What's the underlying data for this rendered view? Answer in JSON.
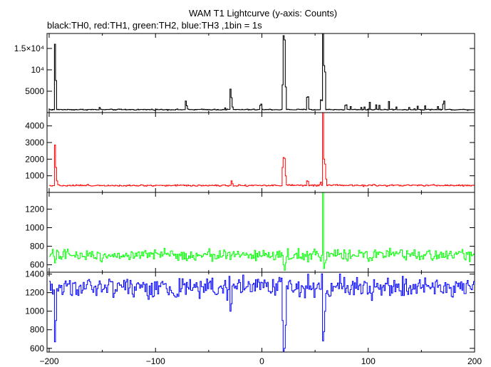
{
  "chart_data": {
    "type": "line",
    "title": "WAM T1 Lightcurve (y-axis: Counts)",
    "subtitle": "black:TH0, red:TH1, green:TH2, blue:TH3 ,1bin = 1s",
    "xlabel": "",
    "ylabel": "",
    "xlim": [
      -202,
      200
    ],
    "x_ticks": [
      -200,
      -100,
      0,
      100,
      200
    ],
    "x_tick_labels": [
      "−200",
      "−100",
      "0",
      "100",
      "200"
    ],
    "grid": false,
    "panels": [
      {
        "series_label": "TH0",
        "color": "#000000",
        "ylim": [
          0,
          18500
        ],
        "y_ticks": [
          5000,
          10000,
          15000
        ],
        "y_tick_labels": [
          "5000",
          "10⁴",
          "1.5×10⁴"
        ],
        "baseline": 700,
        "noise": 60,
        "features": [
          {
            "x": -195,
            "value": 16000
          },
          {
            "x": -194,
            "value": 7500
          },
          {
            "x": -153,
            "value": 1200
          },
          {
            "x": -72,
            "value": 2700
          },
          {
            "x": -71,
            "value": 1600
          },
          {
            "x": -35,
            "value": 1100
          },
          {
            "x": -30,
            "value": 5500
          },
          {
            "x": -29,
            "value": 3500
          },
          {
            "x": -28,
            "value": 1300
          },
          {
            "x": -2,
            "value": 1700
          },
          {
            "x": -1,
            "value": 2000
          },
          {
            "x": 19,
            "value": 6500
          },
          {
            "x": 20,
            "value": 18000
          },
          {
            "x": 21,
            "value": 17000
          },
          {
            "x": 22,
            "value": 6000
          },
          {
            "x": 42,
            "value": 3600
          },
          {
            "x": 43,
            "value": 3700
          },
          {
            "x": 55,
            "value": 3000
          },
          {
            "x": 56,
            "value": 2800
          },
          {
            "x": 57,
            "value": 18500
          },
          {
            "x": 58,
            "value": 11000
          },
          {
            "x": 59,
            "value": 9500
          },
          {
            "x": 78,
            "value": 1700
          },
          {
            "x": 79,
            "value": 1800
          },
          {
            "x": 83,
            "value": 1400
          },
          {
            "x": 93,
            "value": 1200
          },
          {
            "x": 96,
            "value": 1300
          },
          {
            "x": 101,
            "value": 2400
          },
          {
            "x": 107,
            "value": 1800
          },
          {
            "x": 110,
            "value": 1700
          },
          {
            "x": 119,
            "value": 2600
          },
          {
            "x": 126,
            "value": 1300
          },
          {
            "x": 138,
            "value": 1200
          },
          {
            "x": 146,
            "value": 1500
          },
          {
            "x": 153,
            "value": 1600
          },
          {
            "x": 165,
            "value": 1400
          },
          {
            "x": 170,
            "value": 2000
          },
          {
            "x": 171,
            "value": 2700
          }
        ]
      },
      {
        "series_label": "TH1",
        "color": "#ff0000",
        "ylim": [
          0,
          4800
        ],
        "y_ticks": [
          1000,
          2000,
          3000,
          4000
        ],
        "y_tick_labels": [
          "1000",
          "2000",
          "3000",
          "4000"
        ],
        "baseline": 420,
        "noise": 25,
        "features": [
          {
            "x": -195,
            "value": 2850
          },
          {
            "x": -194,
            "value": 1500
          },
          {
            "x": -193,
            "value": 700
          },
          {
            "x": -29,
            "value": 700
          },
          {
            "x": -28,
            "value": 520
          },
          {
            "x": 19,
            "value": 1500
          },
          {
            "x": 20,
            "value": 2100
          },
          {
            "x": 21,
            "value": 2050
          },
          {
            "x": 22,
            "value": 1000
          },
          {
            "x": 42,
            "value": 700
          },
          {
            "x": 43,
            "value": 650
          },
          {
            "x": 55,
            "value": 620
          },
          {
            "x": 57,
            "value": 4800
          },
          {
            "x": 58,
            "value": 2000
          },
          {
            "x": 59,
            "value": 1700
          },
          {
            "x": 60,
            "value": 800
          }
        ]
      },
      {
        "series_label": "TH2",
        "color": "#00ff00",
        "ylim": [
          520,
          1380
        ],
        "y_ticks": [
          600,
          800,
          1000,
          1200
        ],
        "y_tick_labels": [
          "600",
          "800",
          "1000",
          "1200"
        ],
        "baseline": 705,
        "noise": 30,
        "features": [
          {
            "x": -195,
            "value": 620
          },
          {
            "x": -194,
            "value": 660
          },
          {
            "x": 20,
            "value": 600
          },
          {
            "x": 21,
            "value": 540
          },
          {
            "x": 22,
            "value": 620
          },
          {
            "x": 55,
            "value": 640
          },
          {
            "x": 57,
            "value": 1380
          },
          {
            "x": 58,
            "value": 560
          },
          {
            "x": 59,
            "value": 620
          },
          {
            "x": 60,
            "value": 650
          }
        ]
      },
      {
        "series_label": "TH3",
        "color": "#0000ff",
        "ylim": [
          560,
          1420
        ],
        "y_ticks": [
          600,
          800,
          1000,
          1200,
          1400
        ],
        "y_tick_labels": [
          "600",
          "800",
          "1000",
          "1200",
          "1400"
        ],
        "baseline": 1260,
        "noise": 55,
        "features": [
          {
            "x": -195,
            "value": 670
          },
          {
            "x": -194,
            "value": 900
          },
          {
            "x": -30,
            "value": 1000
          },
          {
            "x": -29,
            "value": 1080
          },
          {
            "x": 19,
            "value": 900
          },
          {
            "x": 20,
            "value": 570
          },
          {
            "x": 21,
            "value": 600
          },
          {
            "x": 22,
            "value": 850
          },
          {
            "x": 57,
            "value": 680
          },
          {
            "x": 58,
            "value": 780
          },
          {
            "x": 59,
            "value": 1000
          }
        ]
      }
    ]
  }
}
